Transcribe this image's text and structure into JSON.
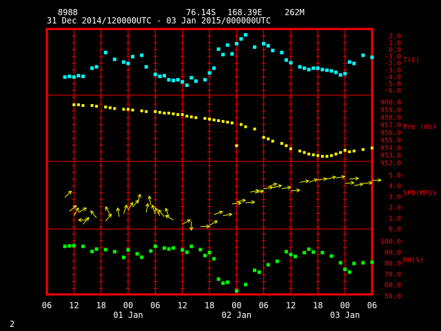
{
  "header": {
    "station_id": "8988",
    "latitude": "76.14S",
    "longitude": "168.39E",
    "elevation": "262M",
    "time_range": "31 Dec 2014/120000UTC - 03 Jan 2015/000000UTC"
  },
  "footer": {
    "page_number": "2"
  },
  "colors": {
    "frame": "#ff0000",
    "grid": "#ff0000",
    "text": "#ffffff",
    "temperature": "#00ffff",
    "pressure": "#ffff00",
    "wind": "#ffff00",
    "humidity": "#00ff00",
    "axis_label": "#ff0000"
  },
  "chart_data": {
    "type": "scatter",
    "x_axis": {
      "unit": "hours from 01 Jan 00 UTC",
      "range": [
        -18,
        54
      ],
      "tick_hours": [
        -18,
        -12,
        -6,
        0,
        6,
        12,
        18,
        24,
        30,
        36,
        42,
        48,
        54
      ],
      "tick_labels": [
        "06",
        "12",
        "18",
        "00",
        "06",
        "12",
        "18",
        "00",
        "06",
        "12",
        "18",
        "00",
        "06"
      ],
      "date_labels": [
        {
          "hour": 0,
          "text": "01 Jan"
        },
        {
          "hour": 24,
          "text": "02 Jan"
        },
        {
          "hour": 48,
          "text": "03 Jan"
        }
      ]
    },
    "panels": [
      {
        "name": "T(C)",
        "type": "scatter",
        "ylim": [
          -6,
          2
        ],
        "yticks": [
          "2.0",
          "1.0",
          "0.0",
          "-1.0",
          "-2.0",
          "-3.0",
          "-4.0",
          "-5.0",
          "-6.0"
        ],
        "ytick_values": [
          2,
          1,
          0,
          -1,
          -2,
          -3,
          -4,
          -5,
          -6
        ],
        "points": [
          [
            -14,
            -4.1
          ],
          [
            -13,
            -4.0
          ],
          [
            -12,
            -4.1
          ],
          [
            -11,
            -3.9
          ],
          [
            -10,
            -4.0
          ],
          [
            -8,
            -2.8
          ],
          [
            -7,
            -2.6
          ],
          [
            -5,
            -0.5
          ],
          [
            -3,
            -1.5
          ],
          [
            -1,
            -1.9
          ],
          [
            0,
            -2.1
          ],
          [
            1,
            -1.1
          ],
          [
            3,
            -0.9
          ],
          [
            4,
            -2.6
          ],
          [
            6,
            -3.7
          ],
          [
            7,
            -4.0
          ],
          [
            8,
            -3.9
          ],
          [
            9,
            -4.5
          ],
          [
            10,
            -4.6
          ],
          [
            11,
            -4.5
          ],
          [
            12,
            -4.8
          ],
          [
            13,
            -5.3
          ],
          [
            14,
            -4.2
          ],
          [
            15,
            -4.7
          ],
          [
            17,
            -4.5
          ],
          [
            18,
            -3.5
          ],
          [
            19,
            -2.8
          ],
          [
            20,
            0.0
          ],
          [
            21,
            -0.8
          ],
          [
            22,
            0.6
          ],
          [
            23,
            -0.7
          ],
          [
            24,
            0.8
          ],
          [
            25,
            1.5
          ],
          [
            26,
            2.1
          ],
          [
            28,
            0.3
          ],
          [
            30,
            0.8
          ],
          [
            31,
            0.5
          ],
          [
            32,
            -0.2
          ],
          [
            34,
            -0.5
          ],
          [
            35,
            -1.6
          ],
          [
            36,
            -2.0
          ],
          [
            38,
            -2.6
          ],
          [
            39,
            -2.8
          ],
          [
            40,
            -3.0
          ],
          [
            41,
            -2.8
          ],
          [
            42,
            -2.8
          ],
          [
            43,
            -3.0
          ],
          [
            44,
            -3.1
          ],
          [
            45,
            -3.2
          ],
          [
            46,
            -3.4
          ],
          [
            47,
            -3.8
          ],
          [
            48,
            -3.6
          ],
          [
            49,
            -1.9
          ],
          [
            50,
            -2.1
          ],
          [
            52,
            -0.9
          ],
          [
            54,
            -1.2
          ]
        ]
      },
      {
        "name": "Pre (mb)",
        "type": "scatter",
        "ylim": [
          952,
          960
        ],
        "yticks": [
          "960.0",
          "959.0",
          "958.0",
          "957.0",
          "956.0",
          "955.0",
          "954.0",
          "953.0",
          "952.0"
        ],
        "ytick_values": [
          960,
          959,
          958,
          957,
          956,
          955,
          954,
          953,
          952
        ],
        "points": [
          [
            -12,
            959.6
          ],
          [
            -11,
            959.6
          ],
          [
            -10,
            959.5
          ],
          [
            -8,
            959.5
          ],
          [
            -7,
            959.4
          ],
          [
            -5,
            959.3
          ],
          [
            -4,
            959.2
          ],
          [
            -3,
            959.1
          ],
          [
            -1,
            959.0
          ],
          [
            0,
            959.0
          ],
          [
            1,
            958.9
          ],
          [
            3,
            958.8
          ],
          [
            4,
            958.7
          ],
          [
            6,
            958.7
          ],
          [
            7,
            958.6
          ],
          [
            8,
            958.5
          ],
          [
            9,
            958.5
          ],
          [
            10,
            958.4
          ],
          [
            11,
            958.3
          ],
          [
            12,
            958.3
          ],
          [
            13,
            958.1
          ],
          [
            14,
            958.0
          ],
          [
            15,
            957.9
          ],
          [
            17,
            957.8
          ],
          [
            18,
            957.7
          ],
          [
            19,
            957.6
          ],
          [
            20,
            957.5
          ],
          [
            21,
            957.4
          ],
          [
            22,
            957.3
          ],
          [
            23,
            957.2
          ],
          [
            24,
            954.2
          ],
          [
            25,
            957.0
          ],
          [
            26,
            956.7
          ],
          [
            28,
            956.4
          ],
          [
            30,
            955.3
          ],
          [
            31,
            955.1
          ],
          [
            32,
            954.8
          ],
          [
            34,
            954.5
          ],
          [
            35,
            954.2
          ],
          [
            36,
            953.8
          ],
          [
            38,
            953.5
          ],
          [
            39,
            953.3
          ],
          [
            40,
            953.1
          ],
          [
            41,
            953.0
          ],
          [
            42,
            952.9
          ],
          [
            43,
            952.8
          ],
          [
            44,
            952.8
          ],
          [
            45,
            952.9
          ],
          [
            46,
            953.1
          ],
          [
            47,
            953.3
          ],
          [
            48,
            953.6
          ],
          [
            49,
            953.4
          ],
          [
            50,
            953.5
          ],
          [
            52,
            953.7
          ],
          [
            54,
            953.9
          ]
        ]
      },
      {
        "name": "SPD(MPS)",
        "type": "wind_vectors",
        "ylim": [
          0,
          5
        ],
        "yticks": [
          "5.0",
          "4.0",
          "3.0",
          "2.0",
          "1.0",
          "0.0"
        ],
        "ytick_values": [
          5,
          4,
          3,
          2,
          1,
          0
        ],
        "vectors": [
          [
            -14,
            2.9,
            45
          ],
          [
            -13,
            1.6,
            50
          ],
          [
            -12,
            1.2,
            30
          ],
          [
            -11,
            1.5,
            60
          ],
          [
            -10,
            0.4,
            40
          ],
          [
            -9,
            0.8,
            270
          ],
          [
            -7,
            1.0,
            320
          ],
          [
            -5,
            0.7,
            40
          ],
          [
            -4,
            1.3,
            330
          ],
          [
            -2,
            1.1,
            350
          ],
          [
            -1,
            1.4,
            20
          ],
          [
            0,
            1.7,
            30
          ],
          [
            1,
            2.0,
            40
          ],
          [
            2,
            2.4,
            20
          ],
          [
            4,
            1.5,
            10
          ],
          [
            5,
            2.2,
            350
          ],
          [
            6,
            1.4,
            340
          ],
          [
            7,
            1.2,
            330
          ],
          [
            8,
            1.1,
            320
          ],
          [
            9,
            1.1,
            340
          ],
          [
            10,
            0.8,
            300
          ],
          [
            12,
            0.4,
            60
          ],
          [
            14,
            0.7,
            180
          ],
          [
            16,
            0.2,
            90
          ],
          [
            18,
            0.3,
            60
          ],
          [
            19,
            1.3,
            70
          ],
          [
            21,
            1.2,
            80
          ],
          [
            23,
            2.3,
            85
          ],
          [
            24,
            2.5,
            80
          ],
          [
            26,
            2.4,
            85
          ],
          [
            27,
            3.4,
            80
          ],
          [
            28,
            3.3,
            75
          ],
          [
            30,
            3.7,
            80
          ],
          [
            31,
            3.9,
            70
          ],
          [
            32,
            3.8,
            75
          ],
          [
            34,
            3.7,
            80
          ],
          [
            36,
            3.5,
            85
          ],
          [
            38,
            4.3,
            80
          ],
          [
            40,
            4.3,
            70
          ],
          [
            42,
            4.5,
            80
          ],
          [
            44,
            4.6,
            75
          ],
          [
            46,
            4.7,
            80
          ],
          [
            48,
            4.2,
            85
          ],
          [
            49,
            4.6,
            85
          ],
          [
            50,
            4.0,
            80
          ],
          [
            52,
            4.2,
            85
          ],
          [
            54,
            4.5,
            90
          ]
        ]
      },
      {
        "name": "RH(%)",
        "type": "scatter",
        "ylim": [
          50,
          100
        ],
        "yticks": [
          "100.0",
          "90.0",
          "80.0",
          "70.0",
          "60.0",
          "50.0"
        ],
        "ytick_values": [
          100,
          90,
          80,
          70,
          60,
          50
        ],
        "points": [
          [
            -14,
            95.1
          ],
          [
            -13,
            95.5
          ],
          [
            -12,
            95.8
          ],
          [
            -10,
            95.1
          ],
          [
            -8,
            90.4
          ],
          [
            -7,
            92.6
          ],
          [
            -5,
            92.1
          ],
          [
            -3,
            90.2
          ],
          [
            -1,
            85.0
          ],
          [
            0,
            91.8
          ],
          [
            2,
            88.3
          ],
          [
            3,
            85.1
          ],
          [
            5,
            90.8
          ],
          [
            6,
            95.2
          ],
          [
            8,
            93.5
          ],
          [
            9,
            92.7
          ],
          [
            10,
            93.6
          ],
          [
            12,
            91.8
          ],
          [
            13,
            89.7
          ],
          [
            14,
            95.1
          ],
          [
            16,
            92.1
          ],
          [
            17,
            86.7
          ],
          [
            18,
            89.5
          ],
          [
            19,
            83.7
          ],
          [
            20,
            65.0
          ],
          [
            21,
            61.3
          ],
          [
            22,
            62.2
          ],
          [
            24,
            54.2
          ],
          [
            26,
            60.0
          ],
          [
            28,
            73.1
          ],
          [
            29,
            71.4
          ],
          [
            31,
            78.2
          ],
          [
            33,
            81.4
          ],
          [
            35,
            90.2
          ],
          [
            36,
            87.6
          ],
          [
            37,
            85.8
          ],
          [
            39,
            89.3
          ],
          [
            40,
            92.5
          ],
          [
            41,
            89.8
          ],
          [
            43,
            89.4
          ],
          [
            45,
            86.2
          ],
          [
            47,
            80.0
          ],
          [
            48,
            74.0
          ],
          [
            49,
            71.5
          ],
          [
            50,
            79.4
          ],
          [
            52,
            80.0
          ],
          [
            54,
            80.6
          ]
        ]
      }
    ]
  }
}
